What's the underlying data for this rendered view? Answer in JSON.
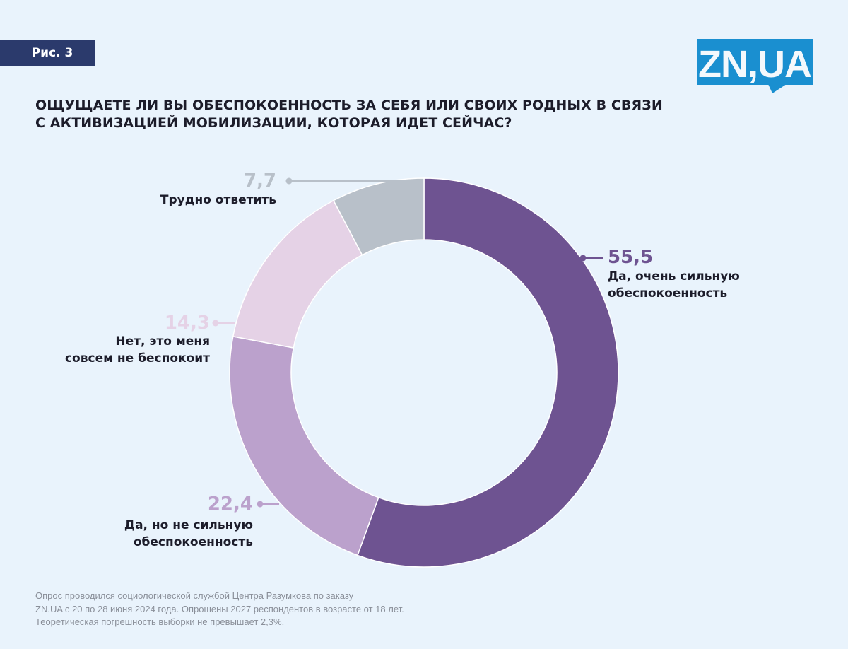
{
  "badge": "Рис. 3",
  "logo": {
    "text": "ZN,UA",
    "color": "#1a8fd0"
  },
  "title_lines": [
    "ОЩУЩАЕТЕ ЛИ ВЫ ОБЕСПОКОЕННОСТЬ ЗА СЕБЯ ИЛИ СВОИХ РОДНЫХ В СВЯЗИ",
    "С АКТИВИЗАЦИЕЙ МОБИЛИЗАЦИИ, КОТОРАЯ ИДЕТ СЕЙЧАС?"
  ],
  "chart_data": {
    "type": "pie",
    "donut": true,
    "title": "ОЩУЩАЕТЕ ЛИ ВЫ ОБЕСПОКОЕННОСТЬ ЗА СЕБЯ ИЛИ СВОИХ РОДНЫХ В СВЯЗИ С АКТИВИЗАЦИЕЙ МОБИЛИЗАЦИИ, КОТОРАЯ ИДЕТ СЕЙЧАС?",
    "slices": [
      {
        "label": [
          "Да, очень сильную",
          "обеспокоенность"
        ],
        "value": 55.5,
        "display": "55,5",
        "color": "#6e5391"
      },
      {
        "label": [
          "Да, но не сильную",
          "обеспокоенность"
        ],
        "value": 22.4,
        "display": "22,4",
        "color": "#bba1cc"
      },
      {
        "label": [
          "Нет, это меня",
          "совсем не беспокоит"
        ],
        "value": 14.3,
        "display": "14,3",
        "color": "#e5d2e6"
      },
      {
        "label": [
          "Трудно ответить"
        ],
        "value": 7.7,
        "display": "7,7",
        "color": "#b8c0c9"
      }
    ]
  },
  "footnote": [
    "Опрос проводился социологической службой Центра Разумкова по заказу",
    "ZN.UA с 20 по 28 июня 2024 года. Опрошены 2027 респондентов в возрасте от 18 лет.",
    "Теоретическая погрешность выборки не превышает 2,3%."
  ]
}
